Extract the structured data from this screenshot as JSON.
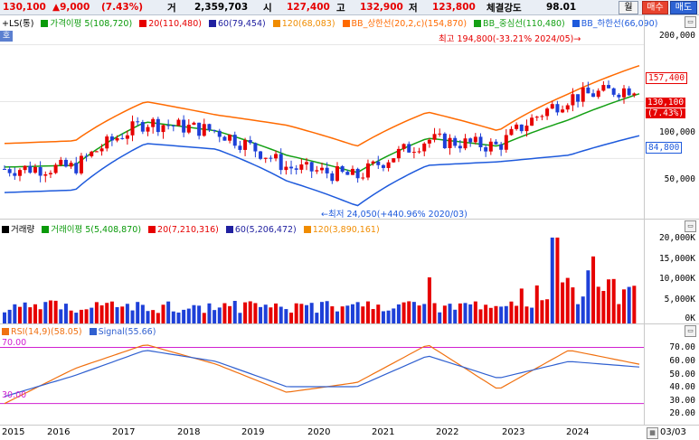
{
  "topbar": {
    "price": "130,100",
    "change": "▲9,000",
    "change_pct": "(7.43%)",
    "volume_label": "거",
    "volume": "2,359,703",
    "open_label": "시",
    "open": "127,400",
    "high_label": "고",
    "high": "132,900",
    "low_label": "저",
    "low": "123,800",
    "strength_label": "체결강도",
    "strength": "98.01",
    "period_btn": "월",
    "buy_btn": "매수",
    "sell_btn": "매도"
  },
  "price_panel": {
    "stock_name": "LS(통)",
    "tag": "호",
    "legends": [
      {
        "text": "가격이평 5(108,720)",
        "color": "#0a9a0a"
      },
      {
        "text": "20(110,480)",
        "color": "#e60000"
      },
      {
        "text": "60(79,454)",
        "color": "#2020a0"
      },
      {
        "text": "120(68,083)",
        "color": "#f08c00"
      },
      {
        "text": "BB_상한선(20,2,c)(154,870)",
        "color": "#ff6a00"
      },
      {
        "text": "BB_중심선(110,480)",
        "color": "#14a014"
      },
      {
        "text": "BB_하한선(66,090)",
        "color": "#1e5adc"
      }
    ],
    "yticks": [
      "200,000",
      "100,000",
      "50,000"
    ],
    "price_flags": {
      "upper": "157,400",
      "current": "130,100",
      "current_pct": "(7.43%)",
      "lower": "84,800"
    },
    "high_note": "최고 194,800(-33.21% 2024/05)→",
    "low_note": "←최저 24,050(+440.96% 2020/03)"
  },
  "volume_panel": {
    "legends": [
      {
        "text": "거래량",
        "color": "#000000"
      },
      {
        "text": "거래이평 5(5,408,870)",
        "color": "#0a9a0a"
      },
      {
        "text": "20(7,210,316)",
        "color": "#e60000"
      },
      {
        "text": "60(5,206,472)",
        "color": "#2020a0"
      },
      {
        "text": "120(3,890,161)",
        "color": "#f08c00"
      }
    ],
    "yticks": [
      "20,000K",
      "15,000K",
      "10,000K",
      "5,000K",
      "0K"
    ]
  },
  "rsi_panel": {
    "legends": [
      {
        "text": "RSI(14,9)(58.05)",
        "color": "#f07010"
      },
      {
        "text": "Signal(55.66)",
        "color": "#3060d0"
      }
    ],
    "yticks": [
      "70.00",
      "60.00",
      "50.00",
      "40.00",
      "30.00",
      "20.00"
    ],
    "left_labels": [
      "70.00",
      "30.00"
    ]
  },
  "xaxis": {
    "years": [
      "2015",
      "2016",
      "2017",
      "2018",
      "2019",
      "2020",
      "2021",
      "2022",
      "2023",
      "2024"
    ],
    "date_right": "03/03"
  },
  "chart_data": {
    "type": "candlestick",
    "title": "LS(통)",
    "price_scale": "log",
    "price_ylim": [
      24000,
      240000
    ],
    "x": [
      "2015",
      "2016",
      "2017",
      "2018",
      "2019",
      "2020",
      "2021",
      "2022",
      "2023",
      "2024"
    ],
    "price_close_approx": [
      44000,
      45000,
      78000,
      70000,
      45000,
      40000,
      63000,
      58000,
      105000,
      120000
    ],
    "price_high": 194800,
    "price_low": 24050,
    "bollinger_upper_approx": [
      60000,
      62000,
      100000,
      85000,
      75000,
      58000,
      88000,
      70000,
      110000,
      155000
    ],
    "bollinger_mid_approx": [
      45000,
      46000,
      78000,
      70000,
      52000,
      42000,
      64000,
      58000,
      80000,
      110000
    ],
    "bollinger_lower_approx": [
      33000,
      34000,
      60000,
      56000,
      38000,
      28000,
      46000,
      48000,
      52000,
      66000
    ],
    "volume_ylim": [
      0,
      22000000
    ],
    "rsi_ylim": [
      15,
      78
    ],
    "rsi_guides": [
      70,
      30
    ],
    "rsi_approx": [
      30,
      55,
      72,
      58,
      38,
      45,
      72,
      40,
      68,
      58
    ],
    "rsi_signal_approx": [
      35,
      50,
      68,
      60,
      42,
      42,
      64,
      48,
      60,
      56
    ]
  }
}
